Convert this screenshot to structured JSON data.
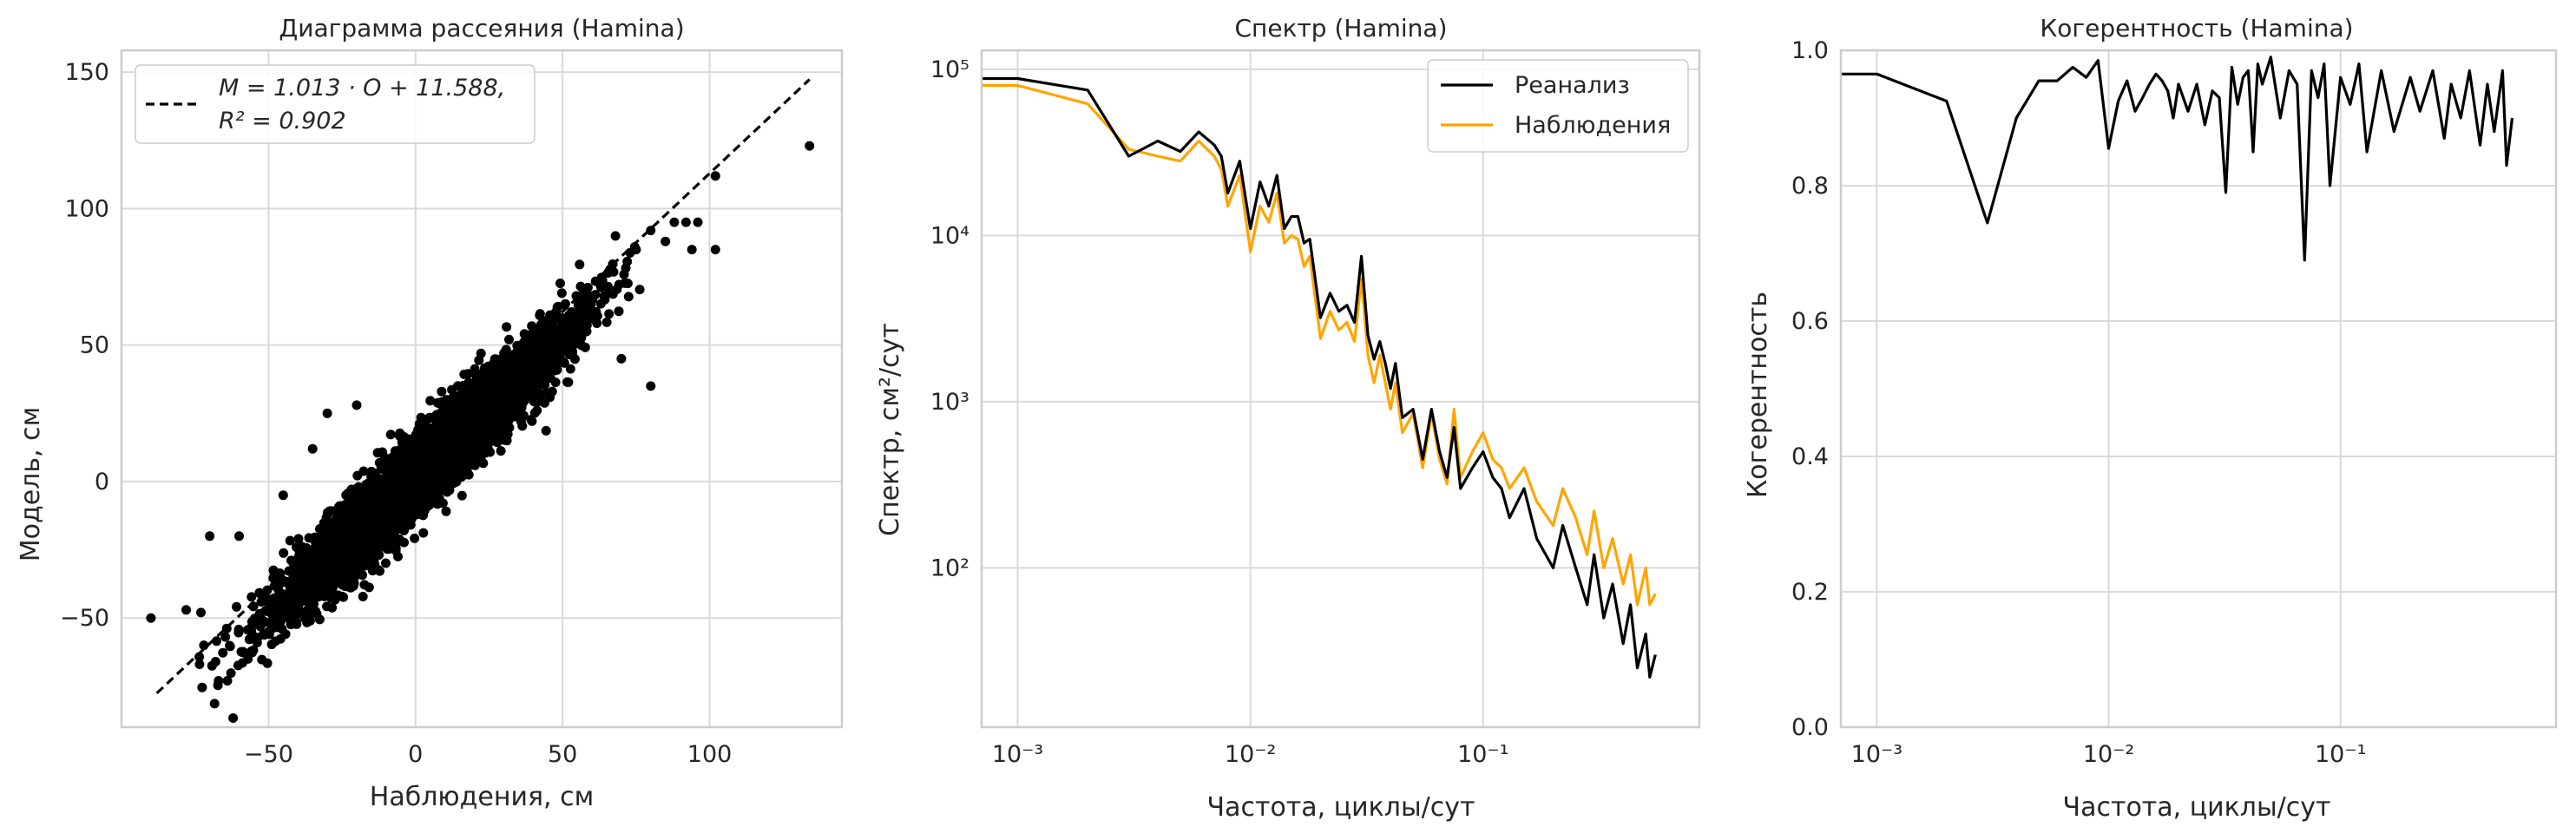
{
  "colors": {
    "background": "#ffffff",
    "spine": "#cccccc",
    "grid": "#d9d9d9",
    "text": "#262626",
    "reanalysis": "#000000",
    "observations": "#ffa500",
    "scatter": "#000000"
  },
  "chart_data": [
    {
      "type": "scatter",
      "title": "Диаграмма рассеяния (Hamina)",
      "xlabel": "Наблюдения, см",
      "ylabel": "Модель, см",
      "xlim": [
        -100,
        145
      ],
      "ylim": [
        -90,
        158
      ],
      "xticks": [
        -50,
        0,
        50,
        100
      ],
      "xtick_labels": [
        "−50",
        "0",
        "50",
        "100"
      ],
      "yticks": [
        -50,
        0,
        50,
        100,
        150
      ],
      "ytick_labels": [
        "−50",
        "0",
        "50",
        "100",
        "150"
      ],
      "grid": true,
      "legend_position": "top-left",
      "fit": {
        "slope": 1.013,
        "intercept": 11.588,
        "r2": 0.902,
        "x_range": [
          -88,
          134
        ],
        "label_line1": "M = 1.013 · O + 11.588,",
        "label_line2": "R² = 0.902",
        "style": "dashed"
      },
      "cloud": {
        "x_range": [
          -75,
          80
        ],
        "y_offset_spread": 16,
        "approx_points": 5000
      },
      "points": [
        {
          "x": -90,
          "y": -50
        },
        {
          "x": -78,
          "y": -47
        },
        {
          "x": -73,
          "y": -48
        },
        {
          "x": -72,
          "y": -60
        },
        {
          "x": -68,
          "y": -66
        },
        {
          "x": -67,
          "y": -73
        },
        {
          "x": -64,
          "y": -73
        },
        {
          "x": -70,
          "y": -20
        },
        {
          "x": -60,
          "y": -20
        },
        {
          "x": -57,
          "y": -65
        },
        {
          "x": -45,
          "y": -5
        },
        {
          "x": -35,
          "y": 12
        },
        {
          "x": -30,
          "y": 25
        },
        {
          "x": -20,
          "y": 28
        },
        {
          "x": 68,
          "y": 90
        },
        {
          "x": 75,
          "y": 85
        },
        {
          "x": 80,
          "y": 92
        },
        {
          "x": 85,
          "y": 88
        },
        {
          "x": 88,
          "y": 95
        },
        {
          "x": 92,
          "y": 95
        },
        {
          "x": 94,
          "y": 85
        },
        {
          "x": 96,
          "y": 95
        },
        {
          "x": 102,
          "y": 112
        },
        {
          "x": 102,
          "y": 85
        },
        {
          "x": 134,
          "y": 123
        },
        {
          "x": 80,
          "y": 35
        },
        {
          "x": 70,
          "y": 45
        }
      ]
    },
    {
      "type": "line",
      "title": "Спектр (Hamina)",
      "xlabel": "Частота, циклы/сут",
      "ylabel": "Спектр, см²/сут",
      "xscale": "log",
      "yscale": "log",
      "xlim": [
        0.0007,
        0.85
      ],
      "ylim": [
        11,
        130000
      ],
      "xticks": [
        0.001,
        0.01,
        0.1
      ],
      "xtick_labels": [
        "10⁻³",
        "10⁻²",
        "10⁻¹"
      ],
      "yticks": [
        100,
        1000,
        10000,
        100000
      ],
      "ytick_labels": [
        "10²",
        "10³",
        "10⁴",
        "10⁵"
      ],
      "grid": true,
      "legend_position": "top-right",
      "series": [
        {
          "name": "Реанализ",
          "color": "#000000",
          "x": [
            0.0007,
            0.001,
            0.002,
            0.003,
            0.004,
            0.005,
            0.006,
            0.007,
            0.0075,
            0.008,
            0.009,
            0.01,
            0.011,
            0.012,
            0.013,
            0.014,
            0.015,
            0.016,
            0.017,
            0.018,
            0.02,
            0.022,
            0.024,
            0.026,
            0.028,
            0.03,
            0.032,
            0.034,
            0.036,
            0.038,
            0.04,
            0.042,
            0.045,
            0.05,
            0.055,
            0.06,
            0.065,
            0.07,
            0.075,
            0.08,
            0.09,
            0.1,
            0.11,
            0.12,
            0.13,
            0.15,
            0.17,
            0.2,
            0.22,
            0.25,
            0.28,
            0.3,
            0.33,
            0.36,
            0.4,
            0.43,
            0.46,
            0.5,
            0.52,
            0.55
          ],
          "y": [
            88000,
            88000,
            75000,
            30000,
            37000,
            32000,
            42000,
            35000,
            30000,
            18000,
            28000,
            11000,
            21000,
            15000,
            23000,
            11000,
            13000,
            13000,
            9000,
            9500,
            3200,
            4500,
            3500,
            3800,
            3000,
            7500,
            2500,
            1800,
            2300,
            1700,
            1200,
            1700,
            800,
            900,
            450,
            900,
            500,
            350,
            700,
            300,
            400,
            500,
            350,
            300,
            200,
            300,
            150,
            100,
            180,
            100,
            60,
            120,
            50,
            80,
            35,
            60,
            25,
            40,
            22,
            30
          ]
        },
        {
          "name": "Наблюдения",
          "color": "#ffa500",
          "x": [
            0.0007,
            0.001,
            0.002,
            0.003,
            0.004,
            0.005,
            0.006,
            0.007,
            0.0075,
            0.008,
            0.009,
            0.01,
            0.011,
            0.012,
            0.013,
            0.014,
            0.015,
            0.016,
            0.017,
            0.018,
            0.02,
            0.022,
            0.024,
            0.026,
            0.028,
            0.03,
            0.032,
            0.034,
            0.036,
            0.038,
            0.04,
            0.042,
            0.045,
            0.05,
            0.055,
            0.06,
            0.065,
            0.07,
            0.075,
            0.08,
            0.09,
            0.1,
            0.11,
            0.12,
            0.13,
            0.15,
            0.17,
            0.2,
            0.22,
            0.25,
            0.28,
            0.3,
            0.33,
            0.36,
            0.4,
            0.43,
            0.46,
            0.5,
            0.52,
            0.55
          ],
          "y": [
            80000,
            80000,
            62000,
            33000,
            30000,
            28000,
            37000,
            30000,
            25000,
            15000,
            23000,
            8000,
            15000,
            12000,
            18000,
            9000,
            10000,
            9500,
            6500,
            7500,
            2400,
            3500,
            2700,
            3000,
            2300,
            5500,
            1900,
            1300,
            1900,
            1300,
            900,
            1300,
            650,
            850,
            400,
            850,
            450,
            320,
            900,
            350,
            500,
            650,
            450,
            400,
            300,
            400,
            250,
            180,
            300,
            200,
            120,
            220,
            100,
            150,
            80,
            120,
            60,
            100,
            60,
            70
          ]
        }
      ]
    },
    {
      "type": "line",
      "title": "Когерентность (Hamina)",
      "xlabel": "Частота, циклы/сут",
      "ylabel": "Когерентность",
      "xscale": "log",
      "xlim": [
        0.0007,
        0.85
      ],
      "ylim": [
        0,
        1.0
      ],
      "xticks": [
        0.001,
        0.01,
        0.1
      ],
      "xtick_labels": [
        "10⁻³",
        "10⁻²",
        "10⁻¹"
      ],
      "yticks": [
        0,
        0.2,
        0.4,
        0.6,
        0.8,
        1.0
      ],
      "ytick_labels": [
        "0.0",
        "0.2",
        "0.4",
        "0.6",
        "0.8",
        "1.0"
      ],
      "grid": true,
      "series": [
        {
          "color": "#000000",
          "x": [
            0.0007,
            0.001,
            0.002,
            0.003,
            0.004,
            0.005,
            0.006,
            0.007,
            0.008,
            0.009,
            0.01,
            0.011,
            0.012,
            0.013,
            0.014,
            0.015,
            0.016,
            0.017,
            0.018,
            0.019,
            0.02,
            0.022,
            0.024,
            0.026,
            0.028,
            0.03,
            0.032,
            0.034,
            0.036,
            0.038,
            0.04,
            0.042,
            0.044,
            0.046,
            0.05,
            0.055,
            0.06,
            0.065,
            0.07,
            0.075,
            0.08,
            0.085,
            0.09,
            0.1,
            0.11,
            0.12,
            0.13,
            0.15,
            0.17,
            0.2,
            0.22,
            0.25,
            0.28,
            0.3,
            0.33,
            0.36,
            0.4,
            0.43,
            0.46,
            0.5,
            0.52,
            0.55
          ],
          "y": [
            0.965,
            0.965,
            0.925,
            0.745,
            0.9,
            0.955,
            0.955,
            0.975,
            0.96,
            0.985,
            0.855,
            0.925,
            0.955,
            0.91,
            0.93,
            0.95,
            0.965,
            0.955,
            0.94,
            0.9,
            0.95,
            0.91,
            0.95,
            0.89,
            0.94,
            0.93,
            0.79,
            0.975,
            0.92,
            0.96,
            0.97,
            0.85,
            0.98,
            0.95,
            0.99,
            0.9,
            0.97,
            0.95,
            0.69,
            0.97,
            0.93,
            0.98,
            0.8,
            0.96,
            0.92,
            0.98,
            0.85,
            0.97,
            0.88,
            0.96,
            0.91,
            0.97,
            0.87,
            0.95,
            0.9,
            0.97,
            0.86,
            0.95,
            0.88,
            0.97,
            0.83,
            0.9
          ]
        }
      ]
    }
  ]
}
